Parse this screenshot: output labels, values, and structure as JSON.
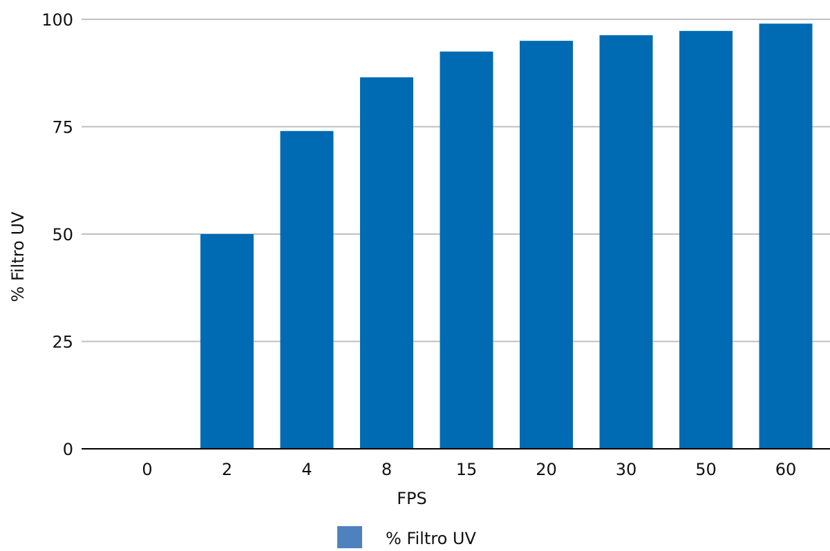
{
  "chart_data": {
    "type": "bar",
    "categories": [
      "0",
      "2",
      "4",
      "8",
      "15",
      "20",
      "30",
      "50",
      "60"
    ],
    "series": [
      {
        "name": "% Filtro UV",
        "values": [
          0,
          50,
          74,
          86.5,
          92.5,
          95,
          96.3,
          97.3,
          99
        ],
        "color": "#006BB3"
      }
    ],
    "title": "",
    "xlabel": "FPS",
    "ylabel": "% Filtro UV",
    "ylim": [
      0,
      100
    ],
    "yticks": [
      "0",
      "25",
      "50",
      "75",
      "100"
    ],
    "grid": true,
    "legend_position": "bottom-center",
    "legend_swatch_color": "#4F81BD",
    "gridline_color": "#bfbfbf",
    "axis_color": "#000000"
  }
}
